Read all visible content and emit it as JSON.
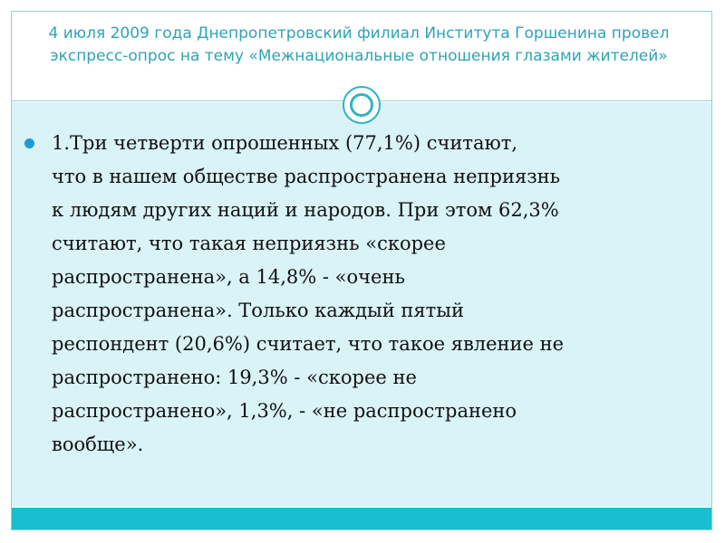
{
  "slide": {
    "title": "4 июля 2009 года Днепропетровский филиал Института Горшенина провел экспресс-опрос на тему «Межнациональные отношения глазами жителей»",
    "bullet_text": " 1.Три четверти опрошенных   (77,1%) считают,\nчто в нашем обществе распространена неприязнь\nк людям других наций и народов. При этом 62,3%\nсчитают, что такая неприязнь «скорее\nраспространена», а 14,8% - «очень\nраспространена». Только каждый пятый\nреспондент (20,6%) считает, что такое явление не\nраспространено: 19,3% - «скорее не\nраспространено», 1,3%, - «не распространено\nвообще»."
  },
  "colors": {
    "title": "#2fa3b5",
    "content_background": "#d9f3f7",
    "footer_bar": "#19bfd0",
    "bullet": "#1f9cd7",
    "frame": "#93cfd8"
  }
}
